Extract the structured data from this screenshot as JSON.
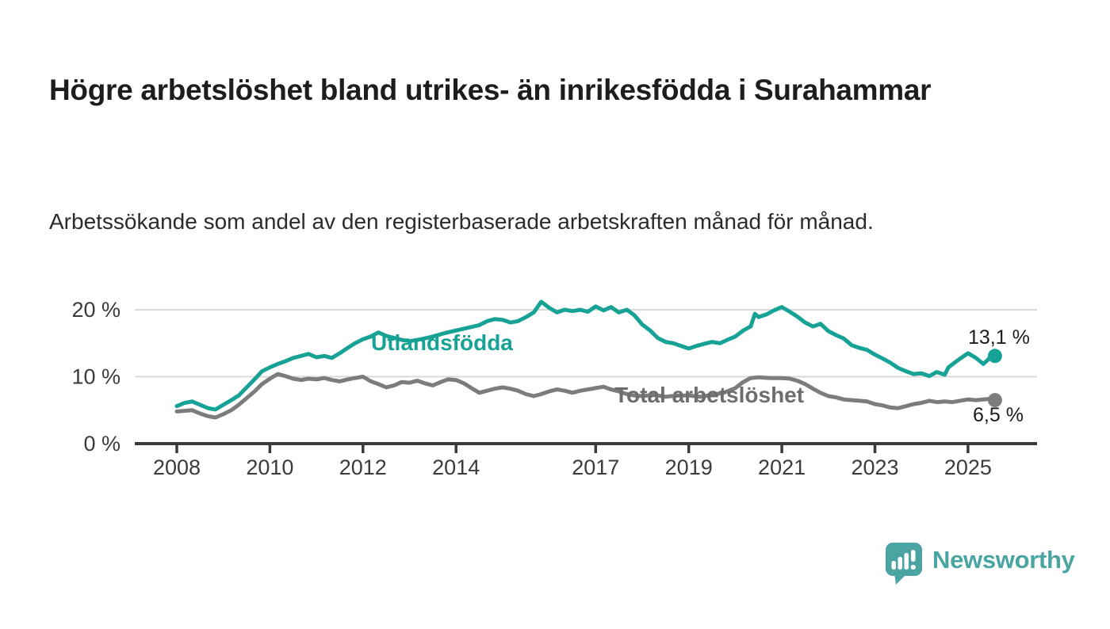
{
  "header": {
    "title": "Högre arbetslöshet bland utrikes- än inrikesfödda i Surahammar",
    "subtitle": "Arbetssökande som andel av den registerbaserade arbetskraften månad för månad."
  },
  "chart_data": {
    "type": "line",
    "title": "",
    "xlabel": "",
    "ylabel": "",
    "unit": "%",
    "grid": true,
    "ylim": [
      0,
      22
    ],
    "xlim": [
      2007.1,
      2026.5
    ],
    "grid_color": "#d9d9d9",
    "axis_color": "#3a3a3a",
    "axis_text_color": "#3b3b3b",
    "annotation_color": "#1d1d1b",
    "y_ticks": [
      {
        "value": 0,
        "label": "0 %"
      },
      {
        "value": 10,
        "label": "10 %"
      },
      {
        "value": 20,
        "label": "20 %"
      }
    ],
    "x_ticks": [
      {
        "value": 2008,
        "label": "2008"
      },
      {
        "value": 2010,
        "label": "2010"
      },
      {
        "value": 2012,
        "label": "2012"
      },
      {
        "value": 2014,
        "label": "2014"
      },
      {
        "value": 2017,
        "label": "2017"
      },
      {
        "value": 2019,
        "label": "2019"
      },
      {
        "value": 2021,
        "label": "2021"
      },
      {
        "value": 2023,
        "label": "2023"
      },
      {
        "value": 2025,
        "label": "2025"
      }
    ],
    "series": [
      {
        "name": "Utlandsfödda",
        "color": "#16a294",
        "label_color": "#16a294",
        "end_label": "13,1 %",
        "end_value": 13.1,
        "points": [
          [
            2008.0,
            5.6
          ],
          [
            2008.17,
            6.1
          ],
          [
            2008.33,
            6.3
          ],
          [
            2008.5,
            5.8
          ],
          [
            2008.67,
            5.3
          ],
          [
            2008.83,
            5.1
          ],
          [
            2009.0,
            5.8
          ],
          [
            2009.17,
            6.5
          ],
          [
            2009.33,
            7.2
          ],
          [
            2009.5,
            8.4
          ],
          [
            2009.67,
            9.6
          ],
          [
            2009.83,
            10.8
          ],
          [
            2010.0,
            11.4
          ],
          [
            2010.17,
            11.9
          ],
          [
            2010.33,
            12.3
          ],
          [
            2010.5,
            12.8
          ],
          [
            2010.67,
            13.1
          ],
          [
            2010.83,
            13.4
          ],
          [
            2011.0,
            12.9
          ],
          [
            2011.17,
            13.1
          ],
          [
            2011.33,
            12.8
          ],
          [
            2011.5,
            13.5
          ],
          [
            2011.67,
            14.3
          ],
          [
            2011.83,
            15.0
          ],
          [
            2012.0,
            15.6
          ],
          [
            2012.17,
            16.0
          ],
          [
            2012.33,
            16.6
          ],
          [
            2012.5,
            16.1
          ],
          [
            2012.67,
            15.8
          ],
          [
            2012.83,
            15.5
          ],
          [
            2013.0,
            15.3
          ],
          [
            2013.25,
            15.6
          ],
          [
            2013.5,
            16.0
          ],
          [
            2013.75,
            16.5
          ],
          [
            2014.0,
            16.9
          ],
          [
            2014.25,
            17.3
          ],
          [
            2014.5,
            17.7
          ],
          [
            2014.67,
            18.3
          ],
          [
            2014.83,
            18.6
          ],
          [
            2015.0,
            18.5
          ],
          [
            2015.17,
            18.1
          ],
          [
            2015.33,
            18.3
          ],
          [
            2015.5,
            18.9
          ],
          [
            2015.67,
            19.6
          ],
          [
            2015.83,
            21.2
          ],
          [
            2016.0,
            20.3
          ],
          [
            2016.17,
            19.6
          ],
          [
            2016.33,
            20.0
          ],
          [
            2016.5,
            19.8
          ],
          [
            2016.67,
            20.0
          ],
          [
            2016.83,
            19.7
          ],
          [
            2017.0,
            20.5
          ],
          [
            2017.17,
            19.9
          ],
          [
            2017.33,
            20.4
          ],
          [
            2017.5,
            19.6
          ],
          [
            2017.67,
            20.0
          ],
          [
            2017.83,
            19.2
          ],
          [
            2018.0,
            17.8
          ],
          [
            2018.17,
            16.9
          ],
          [
            2018.33,
            15.8
          ],
          [
            2018.5,
            15.2
          ],
          [
            2018.67,
            15.0
          ],
          [
            2018.83,
            14.6
          ],
          [
            2019.0,
            14.2
          ],
          [
            2019.17,
            14.6
          ],
          [
            2019.33,
            14.9
          ],
          [
            2019.5,
            15.2
          ],
          [
            2019.67,
            15.0
          ],
          [
            2019.83,
            15.5
          ],
          [
            2020.0,
            16.0
          ],
          [
            2020.17,
            16.9
          ],
          [
            2020.33,
            17.5
          ],
          [
            2020.42,
            19.4
          ],
          [
            2020.5,
            18.9
          ],
          [
            2020.67,
            19.3
          ],
          [
            2020.83,
            19.9
          ],
          [
            2021.0,
            20.4
          ],
          [
            2021.17,
            19.7
          ],
          [
            2021.33,
            19.0
          ],
          [
            2021.5,
            18.1
          ],
          [
            2021.67,
            17.5
          ],
          [
            2021.83,
            17.9
          ],
          [
            2022.0,
            16.8
          ],
          [
            2022.17,
            16.2
          ],
          [
            2022.33,
            15.7
          ],
          [
            2022.5,
            14.7
          ],
          [
            2022.67,
            14.3
          ],
          [
            2022.83,
            14.0
          ],
          [
            2023.0,
            13.3
          ],
          [
            2023.17,
            12.7
          ],
          [
            2023.33,
            12.1
          ],
          [
            2023.5,
            11.3
          ],
          [
            2023.67,
            10.8
          ],
          [
            2023.83,
            10.4
          ],
          [
            2024.0,
            10.5
          ],
          [
            2024.17,
            10.1
          ],
          [
            2024.33,
            10.7
          ],
          [
            2024.5,
            10.3
          ],
          [
            2024.58,
            11.4
          ],
          [
            2024.75,
            12.3
          ],
          [
            2024.83,
            12.7
          ],
          [
            2025.0,
            13.5
          ],
          [
            2025.17,
            12.8
          ],
          [
            2025.33,
            11.9
          ],
          [
            2025.5,
            13.0
          ],
          [
            2025.58,
            13.1
          ]
        ]
      },
      {
        "name": "Total arbetslöshet",
        "color": "#7c7c7c",
        "label_color": "#6d6d6d",
        "end_label": "6,5 %",
        "end_value": 6.5,
        "points": [
          [
            2008.0,
            4.8
          ],
          [
            2008.17,
            4.9
          ],
          [
            2008.33,
            5.0
          ],
          [
            2008.5,
            4.5
          ],
          [
            2008.67,
            4.1
          ],
          [
            2008.83,
            3.9
          ],
          [
            2009.0,
            4.4
          ],
          [
            2009.17,
            5.0
          ],
          [
            2009.33,
            5.8
          ],
          [
            2009.5,
            6.8
          ],
          [
            2009.67,
            7.8
          ],
          [
            2009.83,
            8.9
          ],
          [
            2010.0,
            9.7
          ],
          [
            2010.17,
            10.4
          ],
          [
            2010.33,
            10.1
          ],
          [
            2010.5,
            9.7
          ],
          [
            2010.67,
            9.5
          ],
          [
            2010.83,
            9.7
          ],
          [
            2011.0,
            9.6
          ],
          [
            2011.17,
            9.8
          ],
          [
            2011.33,
            9.5
          ],
          [
            2011.5,
            9.3
          ],
          [
            2011.67,
            9.6
          ],
          [
            2011.83,
            9.8
          ],
          [
            2012.0,
            10.0
          ],
          [
            2012.17,
            9.3
          ],
          [
            2012.33,
            8.9
          ],
          [
            2012.5,
            8.4
          ],
          [
            2012.67,
            8.7
          ],
          [
            2012.83,
            9.2
          ],
          [
            2013.0,
            9.1
          ],
          [
            2013.17,
            9.4
          ],
          [
            2013.33,
            9.0
          ],
          [
            2013.5,
            8.7
          ],
          [
            2013.67,
            9.2
          ],
          [
            2013.83,
            9.6
          ],
          [
            2014.0,
            9.5
          ],
          [
            2014.17,
            9.0
          ],
          [
            2014.33,
            8.3
          ],
          [
            2014.5,
            7.6
          ],
          [
            2014.67,
            7.9
          ],
          [
            2014.83,
            8.2
          ],
          [
            2015.0,
            8.4
          ],
          [
            2015.17,
            8.2
          ],
          [
            2015.33,
            7.9
          ],
          [
            2015.5,
            7.4
          ],
          [
            2015.67,
            7.1
          ],
          [
            2015.83,
            7.4
          ],
          [
            2016.0,
            7.8
          ],
          [
            2016.17,
            8.1
          ],
          [
            2016.33,
            7.9
          ],
          [
            2016.5,
            7.6
          ],
          [
            2016.67,
            7.9
          ],
          [
            2016.83,
            8.1
          ],
          [
            2017.0,
            8.3
          ],
          [
            2017.17,
            8.5
          ],
          [
            2017.33,
            8.1
          ],
          [
            2017.5,
            7.8
          ],
          [
            2017.67,
            7.4
          ],
          [
            2017.83,
            7.2
          ],
          [
            2018.0,
            7.1
          ],
          [
            2018.25,
            7.3
          ],
          [
            2018.5,
            7.0
          ],
          [
            2018.75,
            7.2
          ],
          [
            2019.0,
            7.2
          ],
          [
            2019.25,
            7.0
          ],
          [
            2019.5,
            7.3
          ],
          [
            2019.75,
            7.6
          ],
          [
            2020.0,
            8.3
          ],
          [
            2020.17,
            9.2
          ],
          [
            2020.33,
            9.8
          ],
          [
            2020.5,
            9.9
          ],
          [
            2020.75,
            9.8
          ],
          [
            2021.0,
            9.8
          ],
          [
            2021.17,
            9.7
          ],
          [
            2021.33,
            9.4
          ],
          [
            2021.5,
            8.9
          ],
          [
            2021.67,
            8.2
          ],
          [
            2021.83,
            7.6
          ],
          [
            2022.0,
            7.1
          ],
          [
            2022.17,
            6.9
          ],
          [
            2022.33,
            6.6
          ],
          [
            2022.5,
            6.5
          ],
          [
            2022.67,
            6.4
          ],
          [
            2022.83,
            6.3
          ],
          [
            2023.0,
            5.9
          ],
          [
            2023.17,
            5.7
          ],
          [
            2023.33,
            5.4
          ],
          [
            2023.5,
            5.3
          ],
          [
            2023.67,
            5.6
          ],
          [
            2023.83,
            5.9
          ],
          [
            2024.0,
            6.1
          ],
          [
            2024.17,
            6.4
          ],
          [
            2024.33,
            6.2
          ],
          [
            2024.5,
            6.3
          ],
          [
            2024.67,
            6.2
          ],
          [
            2024.83,
            6.4
          ],
          [
            2025.0,
            6.6
          ],
          [
            2025.17,
            6.5
          ],
          [
            2025.33,
            6.6
          ],
          [
            2025.5,
            6.7
          ],
          [
            2025.58,
            6.5
          ]
        ]
      }
    ],
    "legend_position": "inline-labels"
  },
  "footer": {
    "brand": "Newsworthy",
    "brand_color": "#4aa5a2",
    "logo_icon": "speech-bubble-bar-chart-icon"
  }
}
